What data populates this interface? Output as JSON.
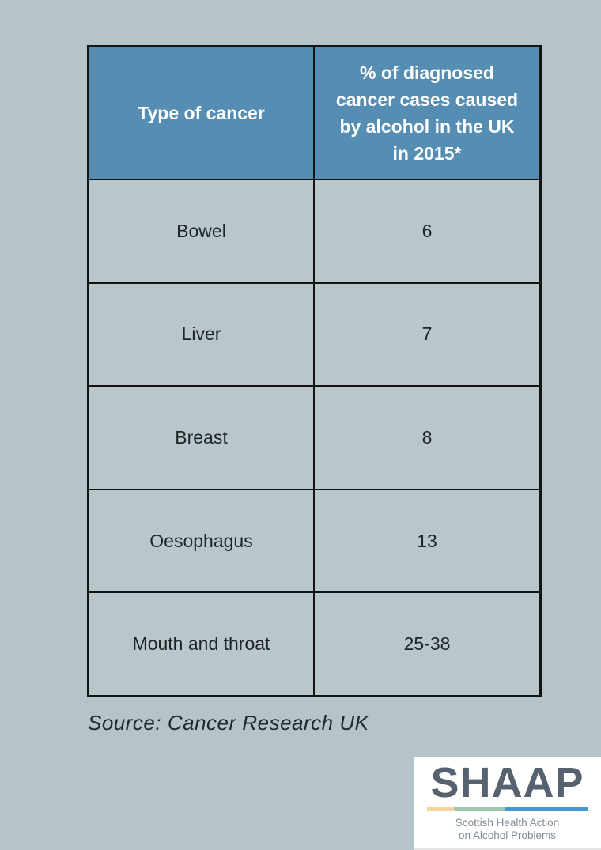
{
  "page": {
    "background_color": "#b5c4c9"
  },
  "table": {
    "header": {
      "col1": "Type of cancer",
      "col2": "% of diagnosed cancer cases caused by alcohol in the UK in 2015*",
      "bg_color": "#568db2",
      "text_color": "#ffffff"
    },
    "rows": [
      {
        "type": "Bowel",
        "pct": "6"
      },
      {
        "type": "Liver",
        "pct": "7"
      },
      {
        "type": "Breast",
        "pct": "8"
      },
      {
        "type": "Oesophagus",
        "pct": "13"
      },
      {
        "type": "Mouth and throat",
        "pct": "25-38"
      }
    ]
  },
  "source": {
    "text": "Source: Cancer Research UK"
  },
  "logo": {
    "word": "SHAAP",
    "tagline_line1": "Scottish Health Action",
    "tagline_line2": "on Alcohol Problems",
    "word_color": "#566270",
    "tagline_color": "#7f8d99",
    "bar_colors": [
      "#f5d49c",
      "#a2c7b0",
      "#4598d2"
    ]
  },
  "chart_data": {
    "type": "table",
    "title": "",
    "columns": [
      "Type of cancer",
      "% of diagnosed cancer cases caused by alcohol in the UK in 2015*"
    ],
    "rows": [
      [
        "Bowel",
        "6"
      ],
      [
        "Liver",
        "7"
      ],
      [
        "Breast",
        "8"
      ],
      [
        "Oesophagus",
        "13"
      ],
      [
        "Mouth and throat",
        "25-38"
      ]
    ],
    "source": "Source: Cancer Research UK",
    "notes": "Second column values are percentages; Mouth and throat shown as range 25-38"
  }
}
